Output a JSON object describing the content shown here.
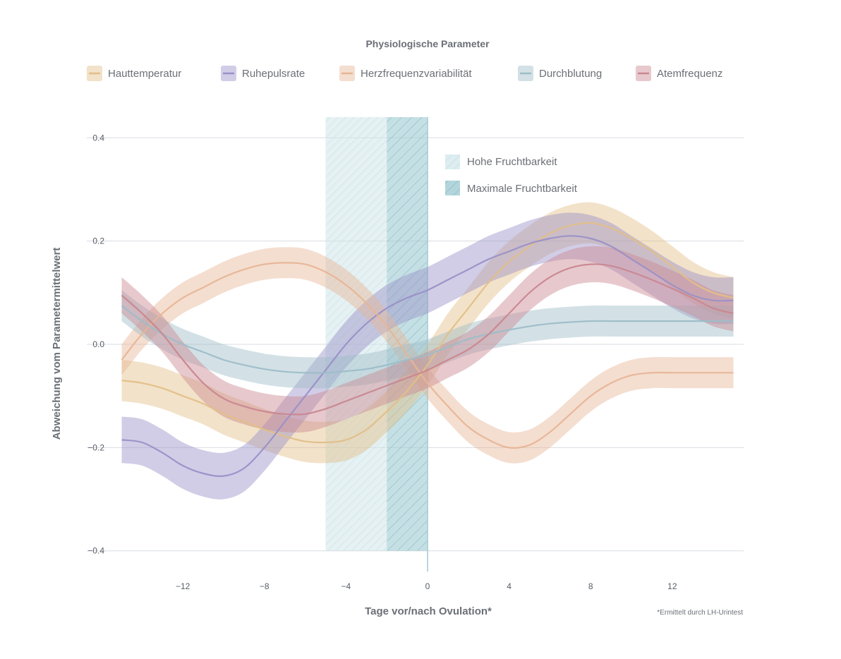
{
  "chart_data": {
    "type": "line",
    "title": "Physiologische Parameter",
    "xlabel": "Tage vor/nach Ovulation*",
    "ylabel": "Abweichung vom Parametermittelwert",
    "footnote": "*Ermittelt durch LH-Urintest",
    "xlim": [
      -15.5,
      15.5
    ],
    "ylim": [
      -0.44,
      0.44
    ],
    "x_ticks": [
      -12,
      -8,
      -4,
      0,
      4,
      8,
      12
    ],
    "x_tick_labels": [
      "−12",
      "−8",
      "−4",
      "0",
      "4",
      "8",
      "12"
    ],
    "y_ticks": [
      0.4,
      0.2,
      0.0,
      -0.2,
      -0.4
    ],
    "y_tick_labels": [
      "0.4",
      "0.2",
      "0.0",
      "−0.2",
      "−0.4"
    ],
    "grid": true,
    "legend_position": "top",
    "regions": [
      {
        "name": "Hohe Fruchtbarkeit",
        "x": [
          -5,
          -2
        ],
        "color": "#cfe6ea"
      },
      {
        "name": "Maximale Fruchtbarkeit",
        "x": [
          -2,
          0
        ],
        "color": "#9fcbd2"
      }
    ],
    "x": [
      -15,
      -14,
      -13,
      -12,
      -11,
      -10,
      -9,
      -8,
      -7,
      -6,
      -5,
      -4,
      -3,
      -2,
      -1,
      0,
      1,
      2,
      3,
      4,
      5,
      6,
      7,
      8,
      9,
      10,
      11,
      12,
      13,
      14,
      15
    ],
    "series": [
      {
        "name": "Hauttemperatur",
        "color": "#e2bf88",
        "band": 0.04,
        "values": [
          -0.07,
          -0.075,
          -0.085,
          -0.1,
          -0.115,
          -0.135,
          -0.15,
          -0.165,
          -0.178,
          -0.188,
          -0.19,
          -0.185,
          -0.165,
          -0.13,
          -0.09,
          -0.04,
          0.02,
          0.07,
          0.12,
          0.16,
          0.19,
          0.215,
          0.23,
          0.235,
          0.225,
          0.205,
          0.18,
          0.15,
          0.12,
          0.1,
          0.09
        ]
      },
      {
        "name": "Ruhepulsrate",
        "color": "#9a90c7",
        "band": 0.045,
        "values": [
          -0.185,
          -0.19,
          -0.21,
          -0.235,
          -0.25,
          -0.255,
          -0.24,
          -0.2,
          -0.15,
          -0.1,
          -0.05,
          0.0,
          0.04,
          0.07,
          0.09,
          0.105,
          0.125,
          0.145,
          0.165,
          0.18,
          0.195,
          0.205,
          0.21,
          0.205,
          0.19,
          0.165,
          0.14,
          0.115,
          0.095,
          0.085,
          0.085
        ]
      },
      {
        "name": "Herzfrequenzvariabilität",
        "color": "#e7b596",
        "band": 0.03,
        "values": [
          -0.03,
          0.02,
          0.06,
          0.09,
          0.11,
          0.13,
          0.145,
          0.155,
          0.158,
          0.155,
          0.14,
          0.115,
          0.08,
          0.035,
          -0.02,
          -0.075,
          -0.12,
          -0.16,
          -0.185,
          -0.2,
          -0.195,
          -0.17,
          -0.135,
          -0.1,
          -0.075,
          -0.06,
          -0.055,
          -0.055,
          -0.055,
          -0.055,
          -0.055
        ]
      },
      {
        "name": "Durchblutung",
        "color": "#9dbdc8",
        "band": 0.03,
        "values": [
          0.075,
          0.045,
          0.02,
          0.0,
          -0.015,
          -0.03,
          -0.04,
          -0.048,
          -0.053,
          -0.055,
          -0.055,
          -0.052,
          -0.048,
          -0.04,
          -0.03,
          -0.02,
          -0.005,
          0.01,
          0.02,
          0.028,
          0.035,
          0.04,
          0.043,
          0.045,
          0.045,
          0.045,
          0.045,
          0.045,
          0.045,
          0.045,
          0.045
        ]
      },
      {
        "name": "Atemfrequenz",
        "color": "#c98790",
        "band": 0.035,
        "values": [
          0.095,
          0.06,
          0.02,
          -0.03,
          -0.075,
          -0.105,
          -0.12,
          -0.13,
          -0.135,
          -0.135,
          -0.125,
          -0.11,
          -0.095,
          -0.08,
          -0.065,
          -0.05,
          -0.03,
          -0.01,
          0.02,
          0.06,
          0.1,
          0.13,
          0.148,
          0.155,
          0.152,
          0.14,
          0.125,
          0.108,
          0.09,
          0.07,
          0.06
        ]
      }
    ]
  }
}
